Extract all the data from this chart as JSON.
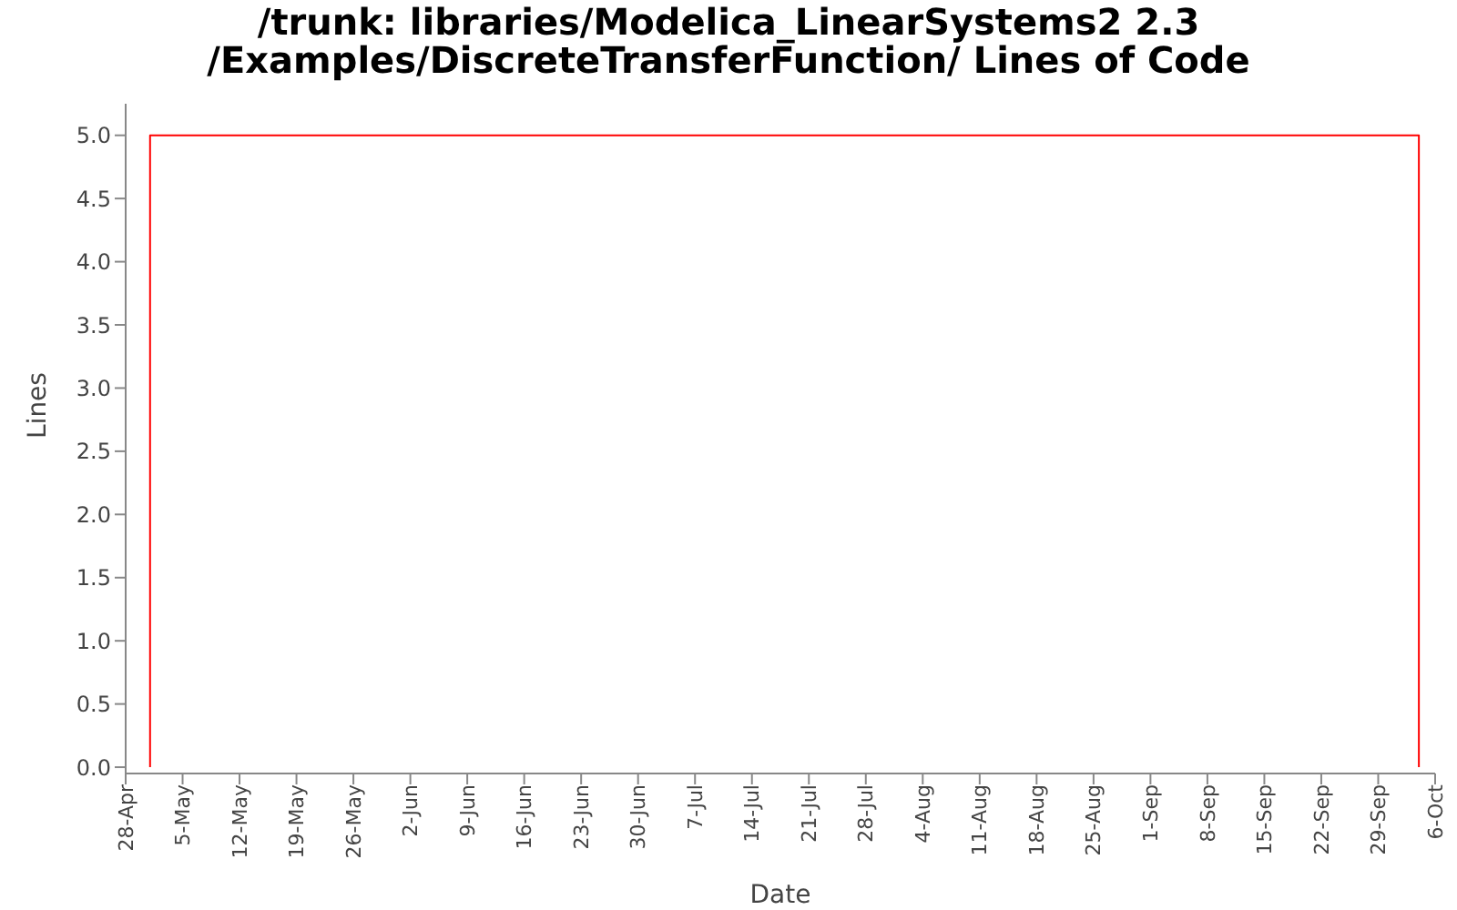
{
  "chart_data": {
    "type": "line",
    "title": "/trunk: libraries/Modelica_LinearSystems2 2.3\n/Examples/DiscreteTransferFunction/ Lines of Code",
    "xlabel": "Date",
    "ylabel": "Lines",
    "series": [
      {
        "color": "#ff0000",
        "x": [
          "--05-01",
          "--05-01",
          "--10-04",
          "--10-04"
        ],
        "values": [
          0,
          5,
          5,
          0
        ]
      }
    ],
    "xlim": [
      "--04-28",
      "--10-06"
    ],
    "xticks": [
      {
        "value": "--04-28",
        "label": "28-Apr"
      },
      {
        "value": "--05-05",
        "label": "5-May"
      },
      {
        "value": "--05-12",
        "label": "12-May"
      },
      {
        "value": "--05-19",
        "label": "19-May"
      },
      {
        "value": "--05-26",
        "label": "26-May"
      },
      {
        "value": "--06-02",
        "label": "2-Jun"
      },
      {
        "value": "--06-09",
        "label": "9-Jun"
      },
      {
        "value": "--06-16",
        "label": "16-Jun"
      },
      {
        "value": "--06-23",
        "label": "23-Jun"
      },
      {
        "value": "--06-30",
        "label": "30-Jun"
      },
      {
        "value": "--07-07",
        "label": "7-Jul"
      },
      {
        "value": "--07-14",
        "label": "14-Jul"
      },
      {
        "value": "--07-21",
        "label": "21-Jul"
      },
      {
        "value": "--07-28",
        "label": "28-Jul"
      },
      {
        "value": "--08-04",
        "label": "4-Aug"
      },
      {
        "value": "--08-11",
        "label": "11-Aug"
      },
      {
        "value": "--08-18",
        "label": "18-Aug"
      },
      {
        "value": "--08-25",
        "label": "25-Aug"
      },
      {
        "value": "--09-01",
        "label": "1-Sep"
      },
      {
        "value": "--09-08",
        "label": "8-Sep"
      },
      {
        "value": "--09-15",
        "label": "15-Sep"
      },
      {
        "value": "--09-22",
        "label": "22-Sep"
      },
      {
        "value": "--09-29",
        "label": "29-Sep"
      },
      {
        "value": "--10-06",
        "label": "6-Oct"
      }
    ],
    "ylim": [
      -0.05,
      5.25
    ],
    "yticks": [
      {
        "value": 0,
        "label": "0.0"
      },
      {
        "value": 0.5,
        "label": "0.5"
      },
      {
        "value": 1,
        "label": "1.0"
      },
      {
        "value": 1.5,
        "label": "1.5"
      },
      {
        "value": 2,
        "label": "2.0"
      },
      {
        "value": 2.5,
        "label": "2.5"
      },
      {
        "value": 3,
        "label": "3.0"
      },
      {
        "value": 3.5,
        "label": "3.5"
      },
      {
        "value": 4,
        "label": "4.0"
      },
      {
        "value": 4.5,
        "label": "4.5"
      },
      {
        "value": 5,
        "label": "5.0"
      }
    ],
    "grid": false,
    "legend": false,
    "marker": "none",
    "line_style": "solid"
  }
}
